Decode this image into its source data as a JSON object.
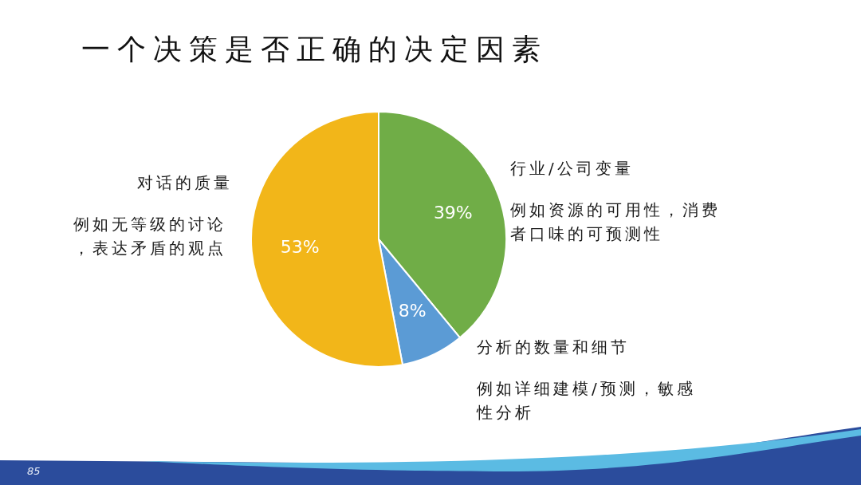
{
  "chart_data": {
    "type": "pie",
    "title": "一个决策是否正确的决定因素",
    "categories": [
      "行业/公司变量",
      "分析的数量和细节",
      "对话的质量"
    ],
    "values": [
      39,
      8,
      53
    ],
    "colors": [
      "#70ad47",
      "#5b9bd5",
      "#f2b619"
    ],
    "value_labels": [
      "39%",
      "8%",
      "53%"
    ],
    "annotations": [
      "例如资源的可用性，消费者口味的可预测性",
      "例如详细建模/预测，敏感性分析",
      "例如无等级的讨论，表达矛盾的观点",
      "85"
    ]
  }
}
